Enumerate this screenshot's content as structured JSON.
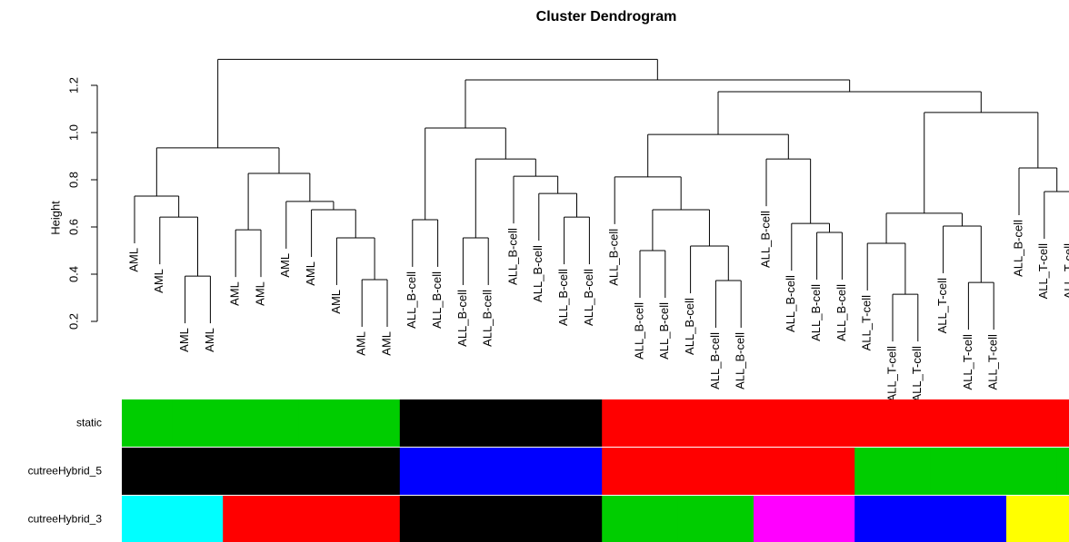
{
  "chart_data": {
    "type": "dendrogram",
    "title": "Cluster Dendrogram",
    "ylabel": "Height",
    "ylim": [
      0.2,
      1.2
    ],
    "yticks": [
      0.2,
      0.4,
      0.6,
      0.8,
      {
        "value": 1,
        "label": "1.0"
      },
      1.2
    ],
    "hang": 0.2,
    "tree": {
      "height": 1.31,
      "children": [
        {
          "height": 0.935,
          "children": [
            {
              "height": 0.731,
              "children": [
                "AML",
                {
                  "height": 0.642,
                  "children": [
                    "AML",
                    {
                      "height": 0.392,
                      "children": [
                        "AML",
                        "AML"
                      ]
                    }
                  ]
                }
              ]
            },
            {
              "height": 0.827,
              "children": [
                {
                  "height": 0.588,
                  "children": [
                    "AML",
                    "AML"
                  ]
                },
                {
                  "height": 0.708,
                  "children": [
                    "AML",
                    {
                      "height": 0.673,
                      "children": [
                        "AML",
                        {
                          "height": 0.554,
                          "children": [
                            "AML",
                            {
                              "height": 0.377,
                              "children": [
                                "AML",
                                "AML"
                              ]
                            }
                          ]
                        }
                      ]
                    }
                  ]
                }
              ]
            }
          ]
        },
        {
          "height": 1.223,
          "children": [
            {
              "height": 1.019,
              "children": [
                {
                  "height": 0.631,
                  "children": [
                    "ALL_B-cell",
                    "ALL_B-cell"
                  ]
                },
                {
                  "height": 0.888,
                  "children": [
                    {
                      "height": 0.554,
                      "children": [
                        "ALL_B-cell",
                        "ALL_B-cell"
                      ]
                    },
                    {
                      "height": 0.815,
                      "children": [
                        "ALL_B-cell",
                        {
                          "height": 0.742,
                          "children": [
                            "ALL_B-cell",
                            {
                              "height": 0.642,
                              "children": [
                                "ALL_B-cell",
                                "ALL_B-cell"
                              ]
                            }
                          ]
                        }
                      ]
                    }
                  ]
                }
              ]
            },
            {
              "height": 1.173,
              "children": [
                {
                  "height": 0.992,
                  "children": [
                    {
                      "height": 0.812,
                      "children": [
                        "ALL_B-cell",
                        {
                          "height": 0.673,
                          "children": [
                            {
                              "height": 0.5,
                              "children": [
                                "ALL_B-cell",
                                "ALL_B-cell"
                              ]
                            },
                            {
                              "height": 0.519,
                              "children": [
                                "ALL_B-cell",
                                {
                                  "height": 0.373,
                                  "children": [
                                    "ALL_B-cell",
                                    "ALL_B-cell"
                                  ]
                                }
                              ]
                            }
                          ]
                        }
                      ]
                    },
                    {
                      "height": 0.888,
                      "children": [
                        "ALL_B-cell",
                        {
                          "height": 0.615,
                          "children": [
                            "ALL_B-cell",
                            {
                              "height": 0.577,
                              "children": [
                                "ALL_B-cell",
                                "ALL_B-cell"
                              ]
                            }
                          ]
                        }
                      ]
                    }
                  ]
                },
                {
                  "height": 1.085,
                  "children": [
                    {
                      "height": 0.658,
                      "children": [
                        {
                          "height": 0.531,
                          "children": [
                            "ALL_T-cell",
                            {
                              "height": 0.315,
                              "children": [
                                "ALL_T-cell",
                                "ALL_T-cell"
                              ]
                            }
                          ]
                        },
                        {
                          "height": 0.604,
                          "children": [
                            "ALL_T-cell",
                            {
                              "height": 0.365,
                              "children": [
                                "ALL_T-cell",
                                "ALL_T-cell"
                              ]
                            }
                          ]
                        }
                      ]
                    },
                    {
                      "height": 0.85,
                      "children": [
                        "ALL_B-cell",
                        {
                          "height": 0.75,
                          "children": [
                            "ALL_T-cell",
                            "ALL_T-cell"
                          ]
                        }
                      ]
                    }
                  ]
                }
              ]
            }
          ]
        }
      ]
    },
    "color_rows": [
      {
        "name": "static",
        "colors": [
          "#00CD00",
          "#00CD00",
          "#00CD00",
          "#00CD00",
          "#00CD00",
          "#00CD00",
          "#00CD00",
          "#00CD00",
          "#00CD00",
          "#00CD00",
          "#00CD00",
          "#000000",
          "#000000",
          "#000000",
          "#000000",
          "#000000",
          "#000000",
          "#000000",
          "#000000",
          "#FF0000",
          "#FF0000",
          "#FF0000",
          "#FF0000",
          "#FF0000",
          "#FF0000",
          "#FF0000",
          "#FF0000",
          "#FF0000",
          "#FF0000",
          "#FF0000",
          "#FF0000",
          "#FF0000",
          "#FF0000",
          "#FF0000",
          "#FF0000",
          "#FF0000",
          "#FF0000",
          "#FF0000"
        ]
      },
      {
        "name": "cutreeHybrid_5",
        "colors": [
          "#000000",
          "#000000",
          "#000000",
          "#000000",
          "#000000",
          "#000000",
          "#000000",
          "#000000",
          "#000000",
          "#000000",
          "#000000",
          "#0000FF",
          "#0000FF",
          "#0000FF",
          "#0000FF",
          "#0000FF",
          "#0000FF",
          "#0000FF",
          "#0000FF",
          "#FF0000",
          "#FF0000",
          "#FF0000",
          "#FF0000",
          "#FF0000",
          "#FF0000",
          "#FF0000",
          "#FF0000",
          "#FF0000",
          "#FF0000",
          "#00CD00",
          "#00CD00",
          "#00CD00",
          "#00CD00",
          "#00CD00",
          "#00CD00",
          "#00CD00",
          "#00CD00",
          "#00CD00"
        ]
      },
      {
        "name": "cutreeHybrid_3",
        "colors": [
          "#00FFFF",
          "#00FFFF",
          "#00FFFF",
          "#00FFFF",
          "#FF0000",
          "#FF0000",
          "#FF0000",
          "#FF0000",
          "#FF0000",
          "#FF0000",
          "#FF0000",
          "#000000",
          "#000000",
          "#000000",
          "#000000",
          "#000000",
          "#000000",
          "#000000",
          "#000000",
          "#00CD00",
          "#00CD00",
          "#00CD00",
          "#00CD00",
          "#00CD00",
          "#00CD00",
          "#FF00FF",
          "#FF00FF",
          "#FF00FF",
          "#FF00FF",
          "#0000FF",
          "#0000FF",
          "#0000FF",
          "#0000FF",
          "#0000FF",
          "#0000FF",
          "#FFFF00",
          "#FFFF00",
          "#FFFF00"
        ]
      }
    ]
  }
}
